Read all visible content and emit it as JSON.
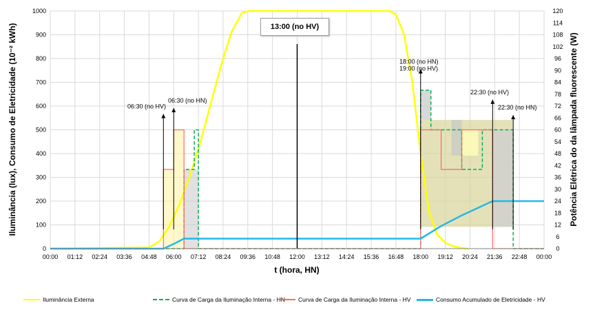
{
  "chart_data": {
    "type": "line",
    "xlabel": "t  (hora, HN)",
    "ylabel_left": "Iluminância  (lux),  Consumo de Eletricidade (10⁻² kWh)",
    "ylabel_right": "Potência Elétrica do da lâmpada fluorescente  (W)",
    "ylim_left": [
      0,
      1000
    ],
    "ylim_right": [
      0,
      120
    ],
    "xlim_hours": [
      0,
      24
    ],
    "x_tick_labels": [
      "00:00",
      "01:12",
      "02:24",
      "03:36",
      "04:48",
      "06:00",
      "07:12",
      "08:24",
      "09:36",
      "10:48",
      "12:00",
      "13:12",
      "14:24",
      "15:36",
      "16:48",
      "18:00",
      "19:12",
      "20:24",
      "21:36",
      "22:48",
      "00:00"
    ],
    "y_left_tick_labels": [
      "0",
      "100",
      "200",
      "300",
      "400",
      "500",
      "600",
      "700",
      "800",
      "900",
      "1000"
    ],
    "y_right_tick_labels": [
      "0",
      "6",
      "12",
      "18",
      "24",
      "30",
      "36",
      "42",
      "48",
      "54",
      "60",
      "66",
      "72",
      "78",
      "84",
      "90",
      "96",
      "102",
      "108",
      "114",
      "120"
    ],
    "grid": true,
    "legend_position": "bottom",
    "series": [
      {
        "name": "Iluminância Externa",
        "color": "#ffff00",
        "axis": "left",
        "x": [
          0,
          4.8,
          5.3,
          5.8,
          6.3,
          6.8,
          7.3,
          7.8,
          8.3,
          8.8,
          9.3,
          9.6,
          10.0,
          16.5,
          16.8,
          17.2,
          17.6,
          18.0,
          18.4,
          18.8,
          19.2,
          19.6,
          20.0,
          20.3
        ],
        "values": [
          0,
          5,
          30,
          95,
          190,
          310,
          450,
          610,
          770,
          910,
          990,
          1000,
          1000,
          1000,
          985,
          900,
          700,
          400,
          160,
          60,
          25,
          10,
          3,
          0
        ]
      },
      {
        "name": "Curva de Carga da Iluminação Interna -  HN",
        "color": "#00b050",
        "axis": "right",
        "dashed": true,
        "x": [
          0,
          6.5,
          6.5,
          7.0,
          7.0,
          7.2,
          7.2,
          18.0,
          18.0,
          18.5,
          18.5,
          20.0,
          20.0,
          21.0,
          21.0,
          22.5,
          22.5,
          24.0
        ],
        "values": [
          0,
          0,
          40,
          40,
          60,
          60,
          0,
          0,
          80,
          80,
          60,
          60,
          40,
          40,
          60,
          60,
          0,
          0
        ]
      },
      {
        "name": "Curva de Carga da Iluminação Interna - HV",
        "color": "#ff6666",
        "axis": "right",
        "x": [
          0,
          5.5,
          5.5,
          6.0,
          6.0,
          6.5,
          6.5,
          18.0,
          18.0,
          19.0,
          19.0,
          20.0,
          20.0,
          21.5,
          21.5,
          24.0
        ],
        "values": [
          0,
          0,
          40,
          40,
          60,
          60,
          0,
          0,
          60,
          60,
          40,
          40,
          60,
          60,
          0,
          0
        ]
      },
      {
        "name": "Consumo Acumulado de Eletricidade - HV",
        "color": "#22b8e8",
        "axis": "left",
        "x": [
          0,
          5.5,
          6.0,
          6.5,
          18.0,
          19.0,
          20.0,
          21.5,
          24.0
        ],
        "values": [
          0,
          0,
          20,
          42,
          42,
          95,
          140,
          200,
          200
        ]
      }
    ],
    "annotations": [
      {
        "text": "06:30 (no HV)",
        "x": 5.5,
        "y_right": 0,
        "y_text": 590
      },
      {
        "text": "06:30 (no HN)",
        "x": 6.0,
        "y_right": 0,
        "y_text": 615
      },
      {
        "text": "18:00 (no HN)",
        "x": 18.0,
        "y_right": 0,
        "y_text": 778
      },
      {
        "text": "19:00 (no HV)",
        "x": 18.0,
        "y_right": 0,
        "y_text": 750
      },
      {
        "text": "22:30 (no HV)",
        "x": 21.5,
        "y_right": 0,
        "y_text": 650
      },
      {
        "text": "22:30 (no HN)",
        "x": 22.5,
        "y_right": 0,
        "y_text": 585
      },
      {
        "text": "13:00 (no HV)",
        "x": 12.0,
        "y_right": 0,
        "y_text": 920
      }
    ]
  }
}
